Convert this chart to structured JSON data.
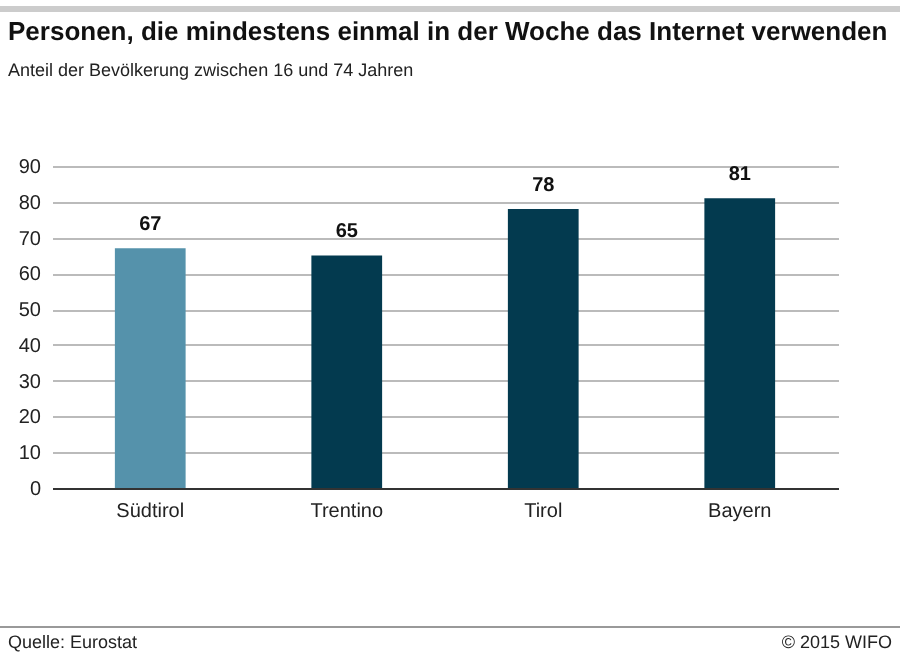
{
  "chart_data": {
    "type": "bar",
    "title": "Personen, die mindestens einmal in der Woche das Internet verwenden",
    "subtitle": "Anteil der Bevölkerung  zwischen 16 und 74 Jahren",
    "categories": [
      "Südtirol",
      "Trentino",
      "Tirol",
      "Bayern"
    ],
    "values": [
      67,
      65,
      78,
      81
    ],
    "colors": [
      "#5592ab",
      "#033a4f",
      "#033a4f",
      "#033a4f"
    ],
    "ylim": [
      0,
      90
    ],
    "yticks": [
      0,
      10,
      20,
      30,
      40,
      50,
      60,
      70,
      80,
      90
    ],
    "grid": "y",
    "data_labels": true,
    "annotations": [
      "Quelle: Eurostat",
      "© 2015 WIFO"
    ]
  }
}
